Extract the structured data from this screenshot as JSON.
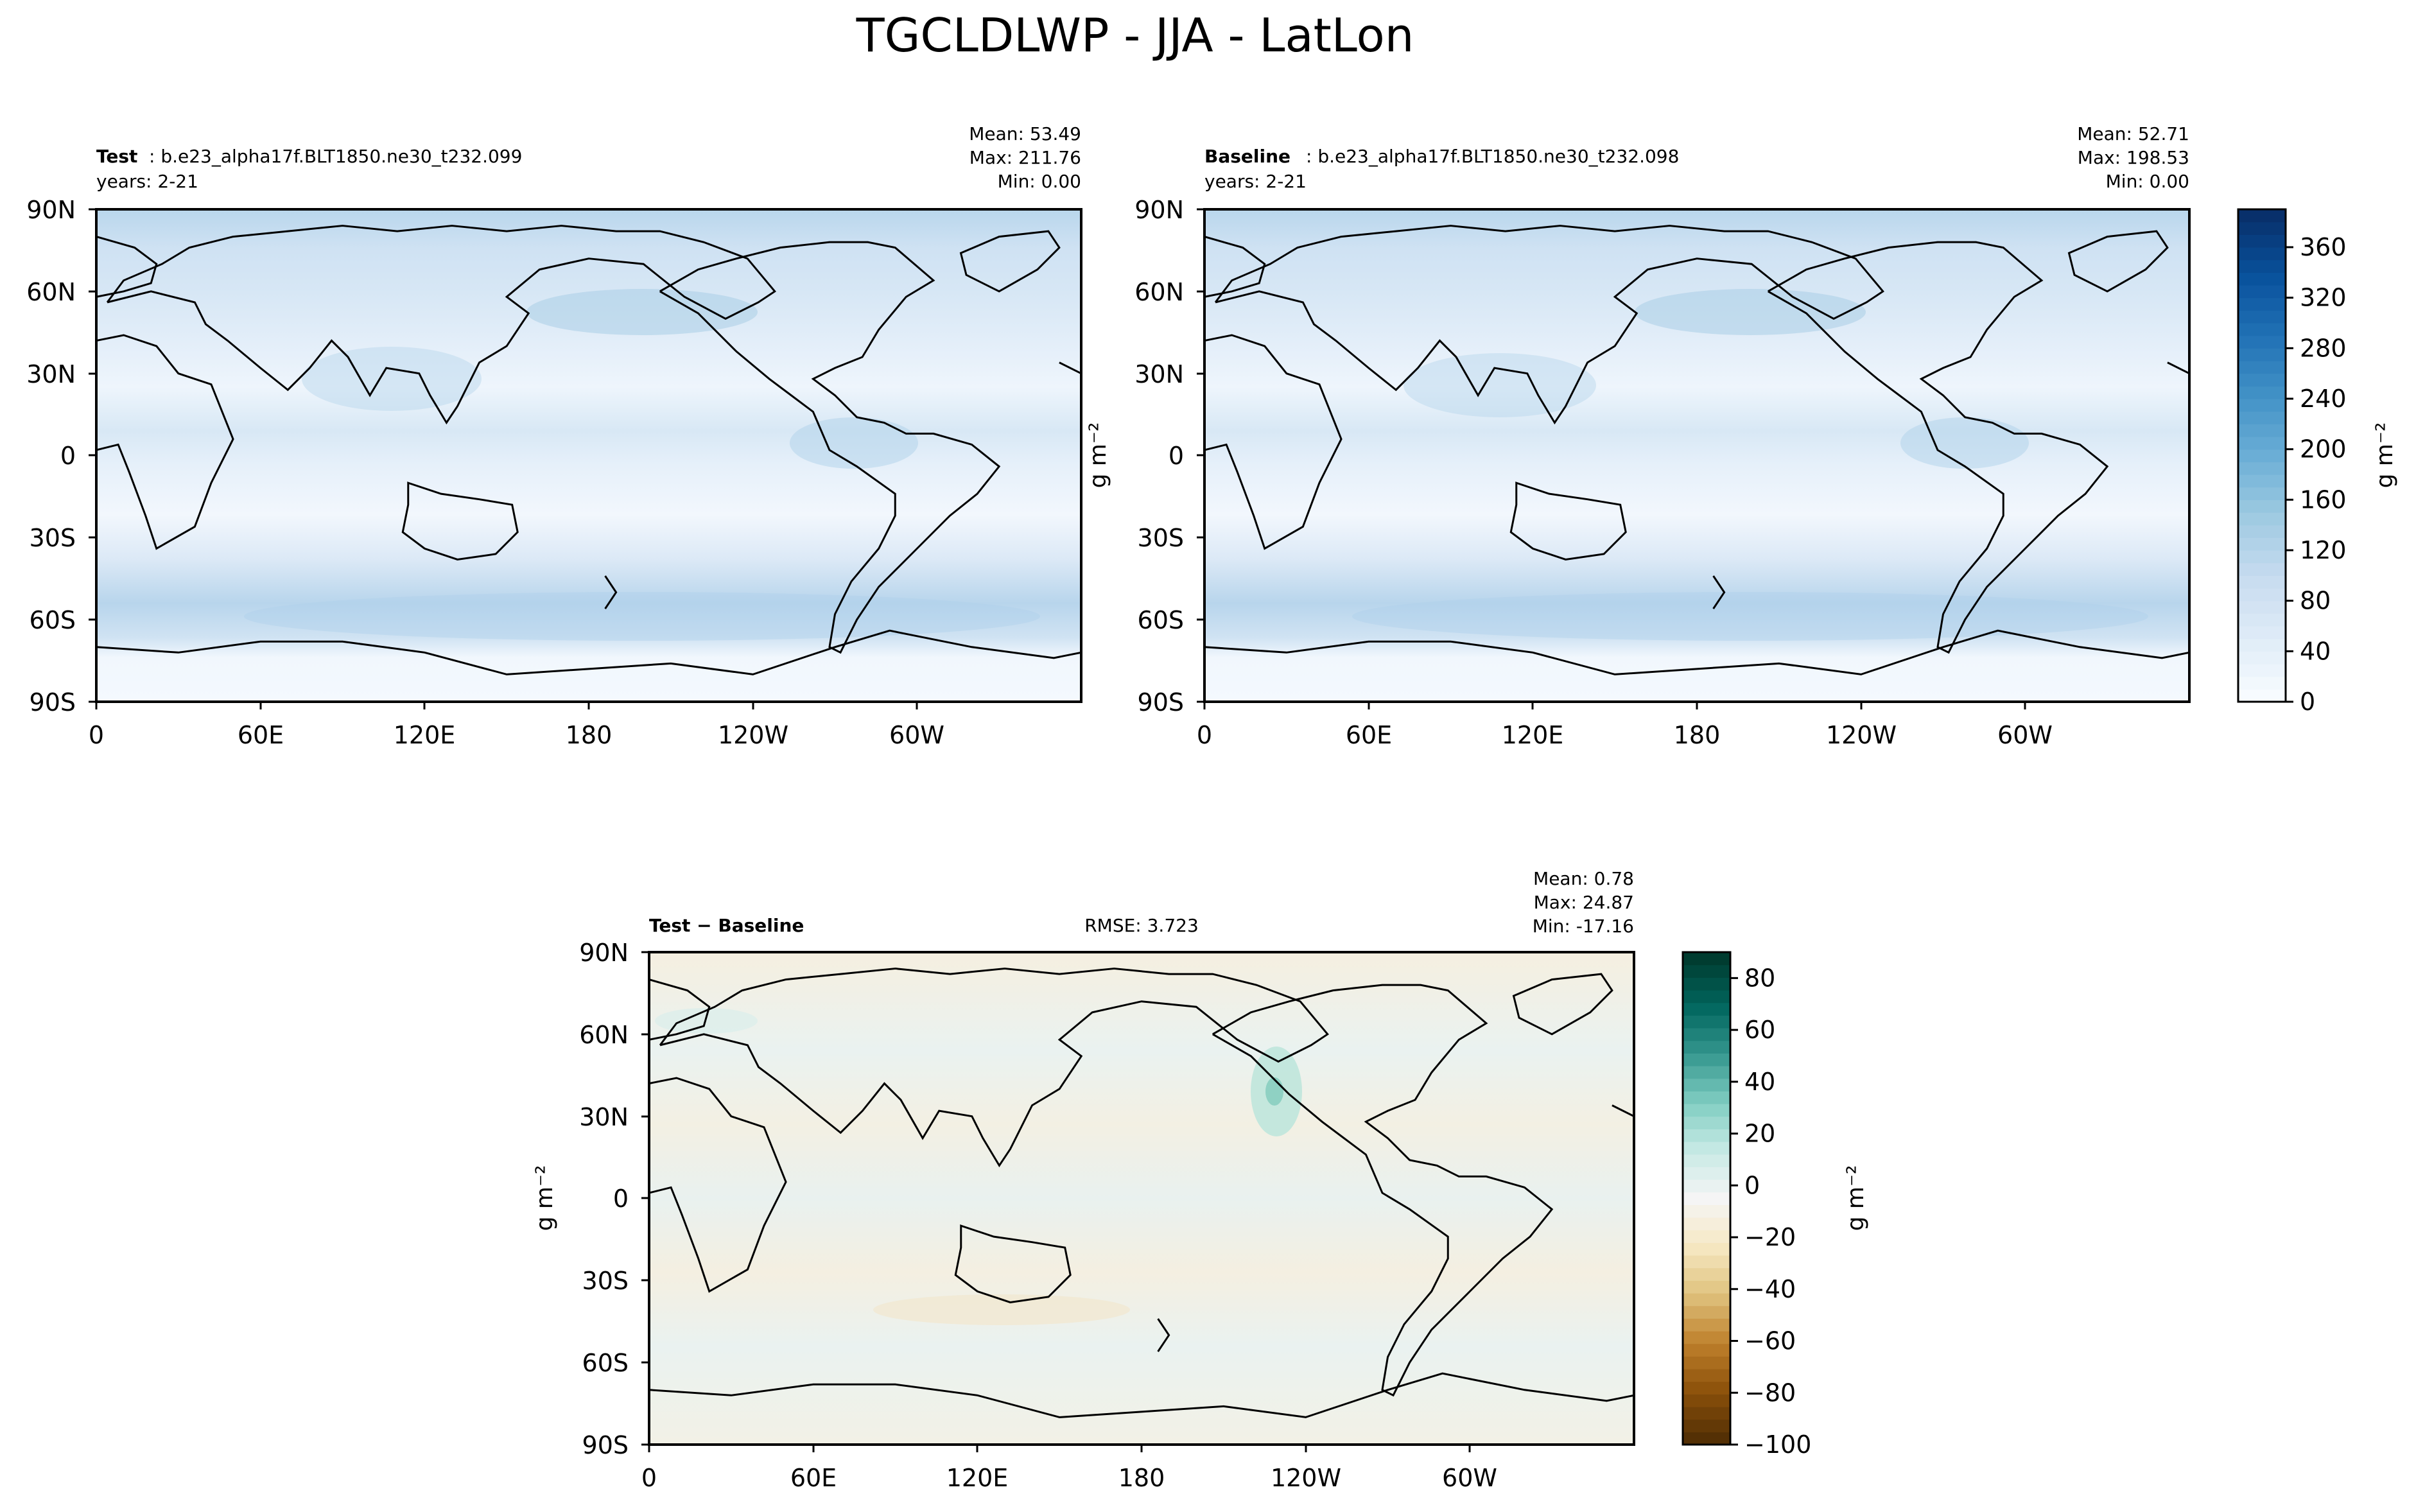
{
  "figure": {
    "title": "TGCLDLWP - JJA - LatLon"
  },
  "panels": [
    {
      "id": "test",
      "label_bold": "Test",
      "label_text": ": b.e23_alpha17f.BLT1850.ne30_t232.099",
      "years": "years: 2-21",
      "stats": [
        "Mean: 53.49",
        "Max: 211.76",
        "Min:  0.00"
      ],
      "units": ""
    },
    {
      "id": "baseline",
      "label_bold": "Baseline",
      "label_text": ": b.e23_alpha17f.BLT1850.ne30_t232.098",
      "years": "years: 2-21",
      "stats": [
        "Mean: 52.71",
        "Max: 198.53",
        "Min:  0.00"
      ],
      "units": "g m⁻²"
    },
    {
      "id": "diff",
      "label_bold": "Test − Baseline",
      "label_text": "",
      "years": "",
      "rmse": "RMSE: 3.723",
      "stats": [
        "Mean:  0.78",
        "Max: 24.87",
        "Min: -17.16"
      ],
      "units": "g m⁻²"
    }
  ],
  "axes": {
    "lat_ticks": [
      "90N",
      "60N",
      "30N",
      "0",
      "30S",
      "60S",
      "90S"
    ],
    "lon_ticks": [
      "0",
      "60E",
      "120E",
      "180",
      "120W",
      "60W"
    ]
  },
  "colorbars": [
    {
      "id": "main",
      "label": "g m⁻²",
      "ticks": [
        "0",
        "40",
        "80",
        "120",
        "160",
        "200",
        "240",
        "280",
        "320",
        "360"
      ],
      "range": [
        0,
        390
      ],
      "colormap": "Blues",
      "colors_low_high": [
        "#f7fbff",
        "#08306b"
      ]
    },
    {
      "id": "diff",
      "label": "g m⁻²",
      "ticks": [
        "−100",
        "−80",
        "−60",
        "−40",
        "−20",
        "0",
        "20",
        "40",
        "60",
        "80"
      ],
      "range": [
        -100,
        90
      ],
      "colormap": "BrBG",
      "colors_low_high": [
        "#543005",
        "#003c30"
      ]
    }
  ]
}
